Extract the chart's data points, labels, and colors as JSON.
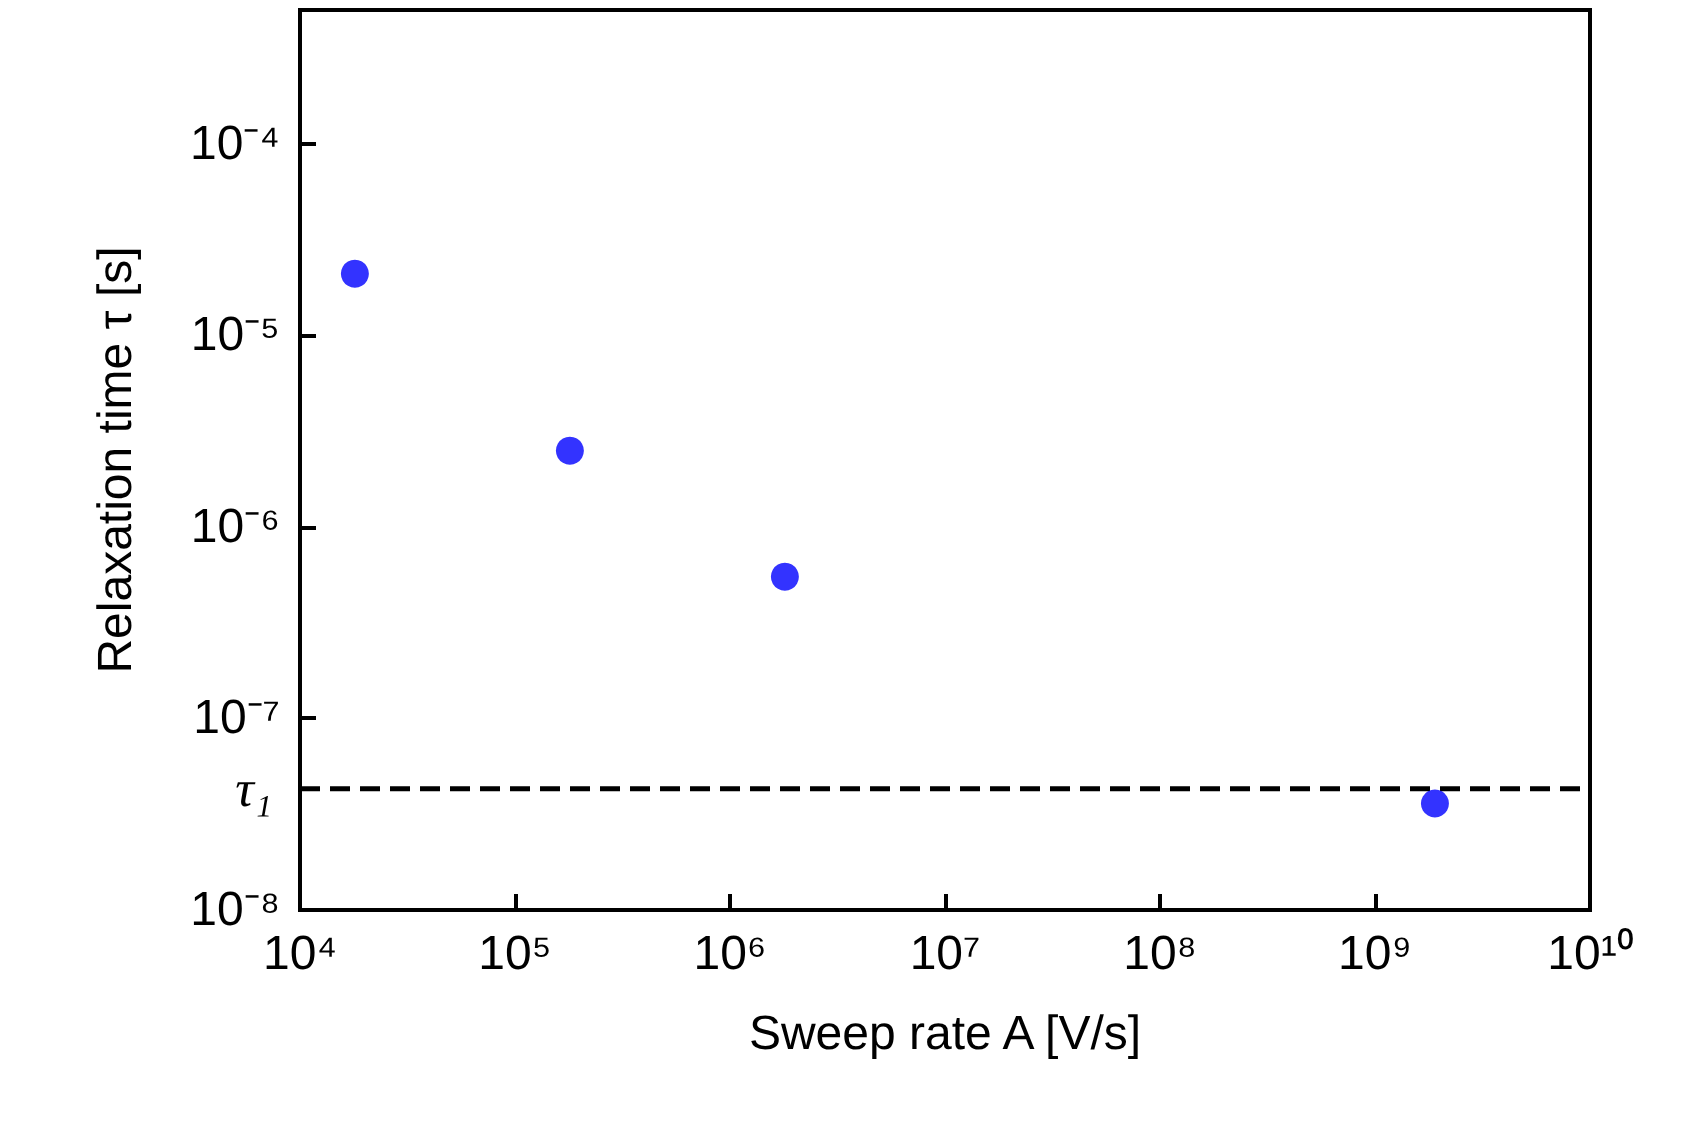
{
  "chart_data": {
    "type": "scatter",
    "xlabel": "Sweep rate A [V/s]",
    "ylabel": "Relaxation time τ [s]",
    "log": "xy",
    "xlim": [
      10000,
      10000000000
    ],
    "ylim": [
      1e-08,
      0.0005
    ],
    "xticks": [
      {
        "value": 10000,
        "label": "10⁴"
      },
      {
        "value": 100000,
        "label": "10⁵"
      },
      {
        "value": 1000000,
        "label": "10⁶"
      },
      {
        "value": 10000000,
        "label": "10⁷"
      },
      {
        "value": 100000000,
        "label": "10⁸"
      },
      {
        "value": 1000000000,
        "label": "10⁹"
      },
      {
        "value": 10000000000,
        "label": "10¹⁰"
      }
    ],
    "yticks": [
      {
        "value": 1e-08,
        "label": "10⁻⁸"
      },
      {
        "value": 1e-07,
        "label": "10⁻⁷"
      },
      {
        "value": 1e-06,
        "label": "10⁻⁶"
      },
      {
        "value": 1e-05,
        "label": "10⁻⁵"
      },
      {
        "value": 0.0001,
        "label": "10⁻⁴"
      }
    ],
    "series": [
      {
        "color": "#0000ff",
        "x": [
          18000,
          180000,
          1800000,
          1900000000
        ],
        "values": [
          2.1e-05,
          2.5e-06,
          5.5e-07,
          3.6e-08
        ]
      }
    ],
    "ref_lines": [
      {
        "axis": "y",
        "value": 4.3e-08,
        "label": "τ₁",
        "color": "#000000",
        "line_style": "dashed"
      }
    ],
    "marker": "circle",
    "grid": false
  }
}
